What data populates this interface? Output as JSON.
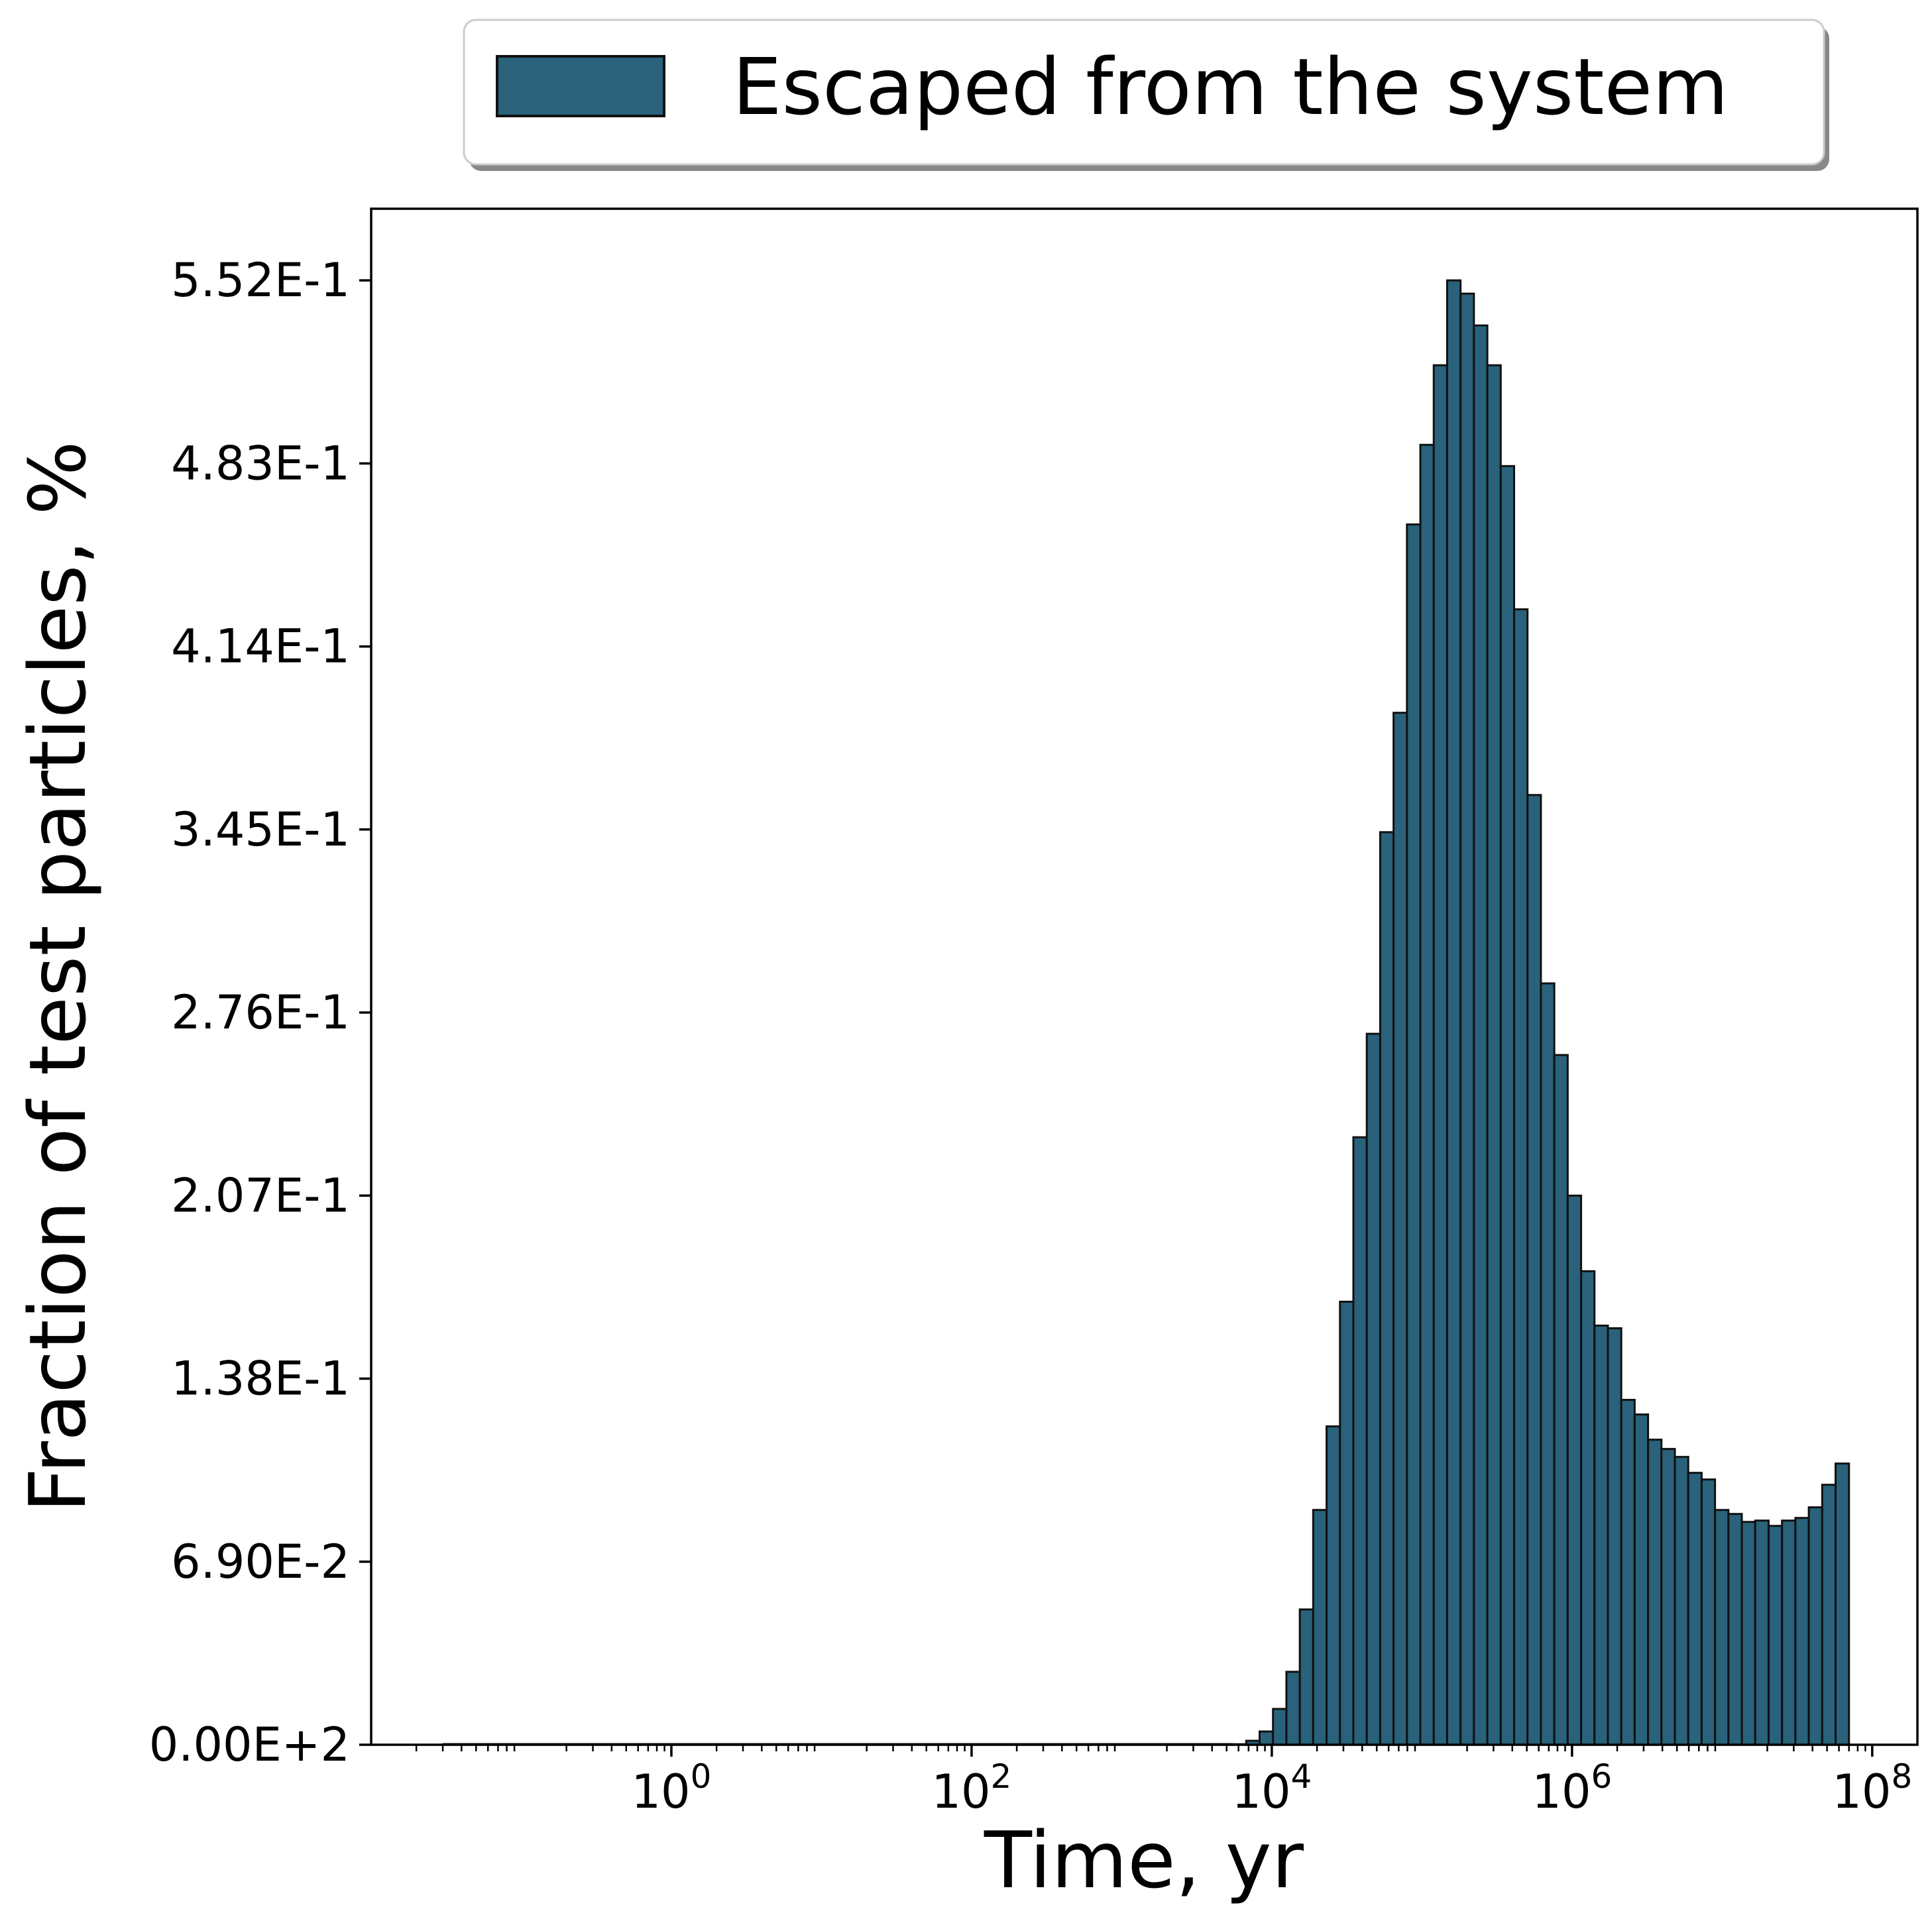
{
  "chart_data": {
    "type": "bar",
    "xscale": "log",
    "xlabel": "Time, yr",
    "ylabel": "Fraction of test particles, %",
    "xlim": [
      0.01,
      200000000
    ],
    "ylim": [
      0,
      0.579
    ],
    "grid": false,
    "legend_position": "top-center-outside",
    "x_ticks": [
      {
        "base": "10",
        "exp": "0",
        "value": 1
      },
      {
        "base": "10",
        "exp": "2",
        "value": 100
      },
      {
        "base": "10",
        "exp": "4",
        "value": 10000
      },
      {
        "base": "10",
        "exp": "6",
        "value": 1000000
      },
      {
        "base": "10",
        "exp": "8",
        "value": 100000000
      }
    ],
    "y_ticks": [
      {
        "label": "0.00E+2",
        "value": 0.0
      },
      {
        "label": "6.90E-2",
        "value": 0.069
      },
      {
        "label": "1.38E-1",
        "value": 0.138
      },
      {
        "label": "2.07E-1",
        "value": 0.207
      },
      {
        "label": "2.76E-1",
        "value": 0.276
      },
      {
        "label": "3.45E-1",
        "value": 0.345
      },
      {
        "label": "4.14E-1",
        "value": 0.414
      },
      {
        "label": "4.83E-1",
        "value": 0.483
      },
      {
        "label": "5.52E-1",
        "value": 0.552
      }
    ],
    "bar_color": "#29627a",
    "edge_color": "#111111",
    "series": [
      {
        "name": "Escaped from the system",
        "bin_start": 5500,
        "bin_end": 70000000,
        "values": [
          0.0002,
          0.0015,
          0.005,
          0.0135,
          0.0275,
          0.051,
          0.0885,
          0.12,
          0.167,
          0.229,
          0.268,
          0.344,
          0.389,
          0.46,
          0.49,
          0.52,
          0.552,
          0.547,
          0.535,
          0.52,
          0.482,
          0.428,
          0.358,
          0.287,
          0.26,
          0.207,
          0.1785,
          0.158,
          0.157,
          0.13,
          0.1245,
          0.115,
          0.1115,
          0.1085,
          0.1025,
          0.1,
          0.0885,
          0.087,
          0.084,
          0.0845,
          0.0825,
          0.0845,
          0.0855,
          0.0895,
          0.098,
          0.106
        ]
      }
    ]
  }
}
